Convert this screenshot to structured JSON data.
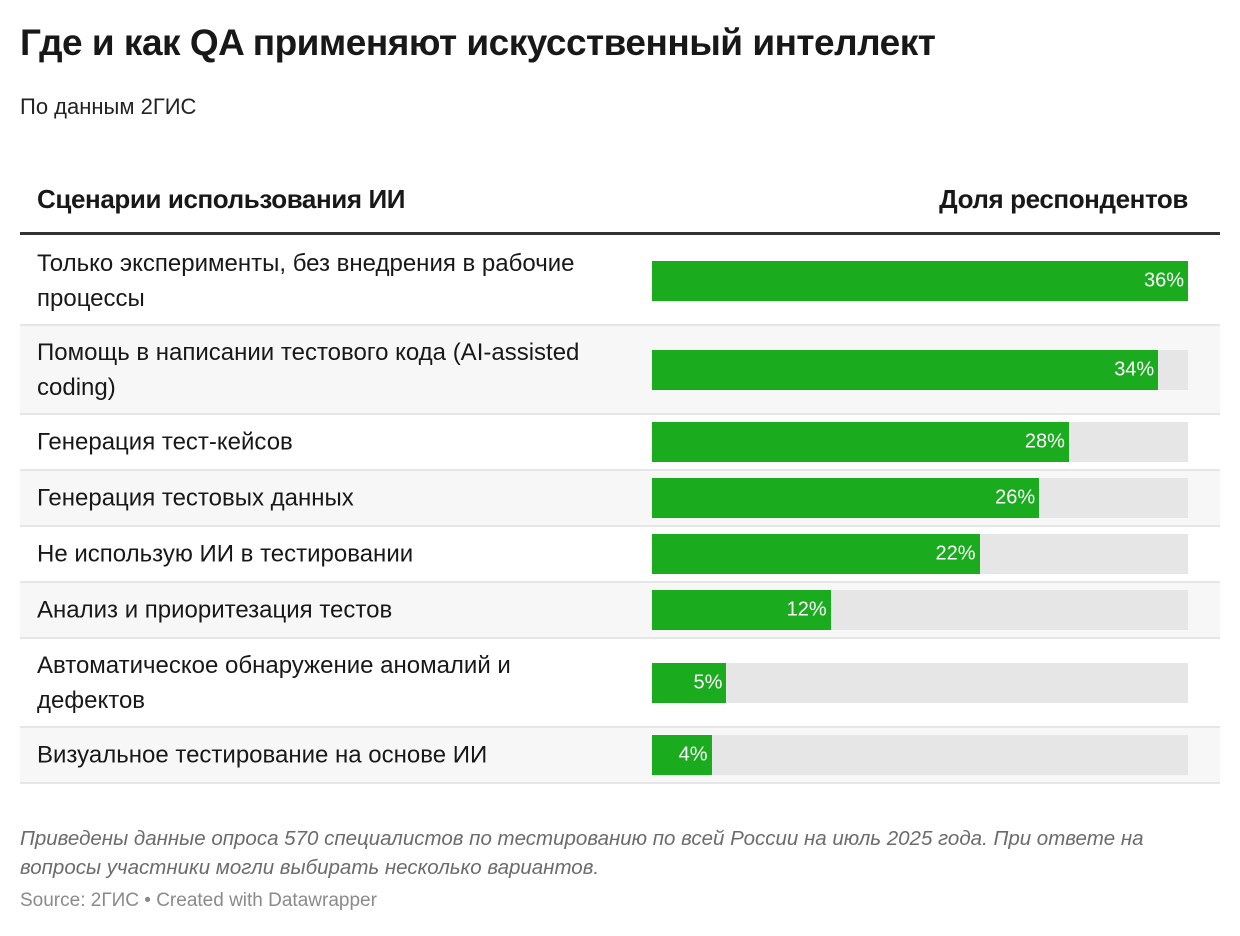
{
  "header": {
    "title": "Где и как QA применяют искусственный интеллект",
    "subtitle": "По данным 2ГИС"
  },
  "table": {
    "col_left": "Сценарии использования ИИ",
    "col_right": "Доля респондентов"
  },
  "chart_data": {
    "type": "bar",
    "orientation": "horizontal",
    "title": "Где и как QA применяют искусственный интеллект",
    "subtitle": "По данным 2ГИС",
    "xlabel": "Доля респондентов",
    "ylabel": "Сценарии использования ИИ",
    "xlim": [
      0,
      36
    ],
    "bar_color": "#1aab1f",
    "track_color": "#e6e6e6",
    "categories": [
      "Только эксперименты, без внедрения в рабочие процессы",
      "Помощь в написании тестового кода (AI-assisted coding)",
      "Генерация тест-кейсов",
      "Генерация тестовых данных",
      "Не использую ИИ в тестировании",
      "Анализ и приоритезация тестов",
      "Автоматическое обнаружение аномалий и дефектов",
      "Визуальное тестирование на основе ИИ"
    ],
    "values": [
      36,
      34,
      28,
      26,
      22,
      12,
      5,
      4
    ],
    "value_labels": [
      "36%",
      "34%",
      "28%",
      "26%",
      "22%",
      "12%",
      "5%",
      "4%"
    ]
  },
  "footer": {
    "note": "Приведены данные опроса 570 специалистов по тестированию по всей России на июль 2025 года. При ответе на вопросы участники могли выбирать несколько вариантов.",
    "source": "Source: 2ГИС • Created with Datawrapper"
  }
}
